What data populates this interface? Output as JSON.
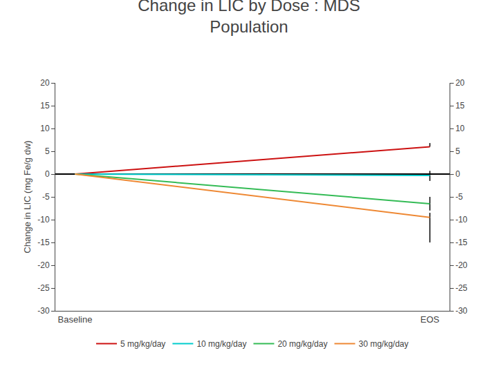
{
  "chart_data": {
    "type": "line",
    "title": "Change in LIC by Dose : MDS\nPopulation",
    "y_label": "Change in LIC (mg Fe/g dw)",
    "categories": [
      "Baseline",
      "EOS"
    ],
    "series": [
      {
        "name": "5 mg/kg/day",
        "color": "#cc1111",
        "values": [
          0,
          6.0
        ],
        "error_minus": [
          null,
          0.0
        ],
        "error_plus": [
          null,
          0.8
        ]
      },
      {
        "name": "10 mg/kg/day",
        "color": "#00cccc",
        "values": [
          0,
          -0.3
        ],
        "error_minus": [
          null,
          1.2
        ],
        "error_plus": [
          null,
          1.0
        ]
      },
      {
        "name": "20 mg/kg/day",
        "color": "#33bb55",
        "values": [
          0,
          -6.5
        ],
        "error_minus": [
          null,
          1.5
        ],
        "error_plus": [
          null,
          1.5
        ]
      },
      {
        "name": "30 mg/kg/day",
        "color": "#ee8833",
        "values": [
          0,
          -9.5
        ],
        "error_minus": [
          null,
          5.5
        ],
        "error_plus": [
          null,
          1.0
        ]
      }
    ],
    "ylim": [
      -30,
      20
    ],
    "yticks": [
      -30,
      -25,
      -20,
      -15,
      -10,
      -5,
      0,
      5,
      10,
      15,
      20
    ],
    "y2lim": [
      -30,
      20
    ],
    "y2ticks": [
      -30,
      -25,
      -20,
      -15,
      -10,
      -5,
      0,
      5,
      10,
      15,
      20
    ],
    "grid": false,
    "legend": "bottom"
  }
}
